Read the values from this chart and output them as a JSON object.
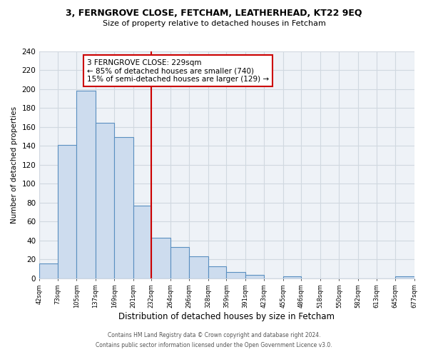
{
  "title": "3, FERNGROVE CLOSE, FETCHAM, LEATHERHEAD, KT22 9EQ",
  "subtitle": "Size of property relative to detached houses in Fetcham",
  "xlabel": "Distribution of detached houses by size in Fetcham",
  "ylabel": "Number of detached properties",
  "bar_color": "#cddcee",
  "bar_edge_color": "#5a8fc0",
  "bin_edges": [
    42,
    73,
    105,
    137,
    169,
    201,
    232,
    264,
    296,
    328,
    359,
    391,
    423,
    455,
    486,
    518,
    550,
    582,
    613,
    645,
    677
  ],
  "bar_heights": [
    16,
    141,
    198,
    164,
    149,
    77,
    43,
    33,
    23,
    13,
    7,
    4,
    0,
    2,
    0,
    0,
    0,
    0,
    0,
    2
  ],
  "vline_x": 232,
  "vline_color": "#cc0000",
  "annotation_title": "3 FERNGROVE CLOSE: 229sqm",
  "annotation_line1": "← 85% of detached houses are smaller (740)",
  "annotation_line2": "15% of semi-detached houses are larger (129) →",
  "annotation_box_color": "#ffffff",
  "annotation_box_edge": "#cc0000",
  "xlim": [
    42,
    677
  ],
  "ylim": [
    0,
    240
  ],
  "yticks": [
    0,
    20,
    40,
    60,
    80,
    100,
    120,
    140,
    160,
    180,
    200,
    220,
    240
  ],
  "xtick_labels": [
    "42sqm",
    "73sqm",
    "105sqm",
    "137sqm",
    "169sqm",
    "201sqm",
    "232sqm",
    "264sqm",
    "296sqm",
    "328sqm",
    "359sqm",
    "391sqm",
    "423sqm",
    "455sqm",
    "486sqm",
    "518sqm",
    "550sqm",
    "582sqm",
    "613sqm",
    "645sqm",
    "677sqm"
  ],
  "footer_line1": "Contains HM Land Registry data © Crown copyright and database right 2024.",
  "footer_line2": "Contains public sector information licensed under the Open Government Licence v3.0.",
  "background_color": "#ffffff",
  "grid_color": "#d0d8e0"
}
